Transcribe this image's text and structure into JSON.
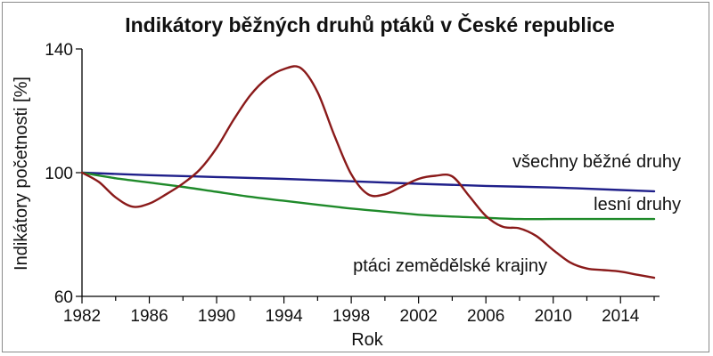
{
  "chart_data": {
    "type": "line",
    "title": "Indikátory běžných druhů ptáků v České republice",
    "xlabel": "Rok",
    "ylabel": "Indikátory početnosti [%]",
    "xlim": [
      1982,
      2016
    ],
    "ylim": [
      60,
      140
    ],
    "x_ticks": [
      "1982",
      "1986",
      "1990",
      "1994",
      "1998",
      "2002",
      "2006",
      "2010",
      "2014"
    ],
    "y_ticks": [
      "60",
      "100",
      "140"
    ],
    "grid": false,
    "legend": "labels placed directly next to lines",
    "series": [
      {
        "name": "všechny běžné druhy",
        "color": "#1f1f8a",
        "x": [
          1982,
          1986,
          1990,
          1994,
          1998,
          2002,
          2006,
          2010,
          2014,
          2016
        ],
        "y": [
          100,
          99.2,
          98.6,
          98.0,
          97.2,
          96.4,
          95.7,
          95.2,
          94.4,
          94.0
        ]
      },
      {
        "name": "lesní druhy",
        "color": "#1f8a2a",
        "x": [
          1982,
          1984,
          1986,
          1988,
          1990,
          1992,
          1994,
          1996,
          1998,
          2000,
          2002,
          2004,
          2006,
          2008,
          2010,
          2012,
          2014,
          2016
        ],
        "y": [
          100,
          98.2,
          96.8,
          95.4,
          93.8,
          92.2,
          90.9,
          89.6,
          88.4,
          87.4,
          86.4,
          85.8,
          85.4,
          85.0,
          85.0,
          85.0,
          85.0,
          85.0
        ]
      },
      {
        "name": "ptáci zemědělské krajiny",
        "color": "#8a1a1a",
        "x": [
          1982,
          1983,
          1984,
          1985,
          1986,
          1987,
          1988,
          1989,
          1990,
          1991,
          1992,
          1993,
          1994,
          1995,
          1996,
          1997,
          1998,
          1999,
          2000,
          2001,
          2002,
          2003,
          2004,
          2005,
          2006,
          2007,
          2008,
          2009,
          2010,
          2011,
          2012,
          2013,
          2014,
          2015,
          2016
        ],
        "y": [
          100,
          97,
          92,
          89,
          90,
          93,
          96.5,
          101,
          108,
          117,
          125,
          130.5,
          133.5,
          133.8,
          126,
          112,
          99.5,
          93,
          93,
          95.5,
          98,
          99,
          98.8,
          92.5,
          86,
          82.5,
          82,
          79.5,
          75,
          71,
          69,
          68.5,
          68,
          67,
          66
        ]
      }
    ]
  }
}
